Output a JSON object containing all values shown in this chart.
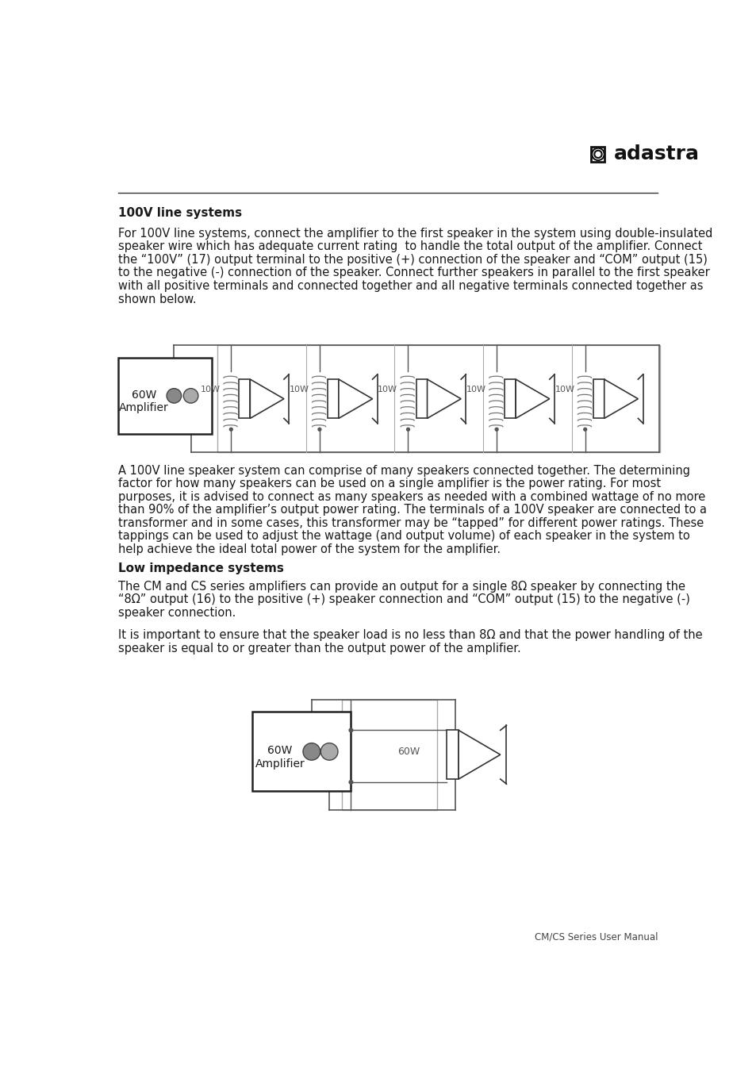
{
  "title1": "100V line systems",
  "para1_lines": [
    "For 100V line systems, connect the amplifier to the first speaker in the system using double-insulated",
    "speaker wire which has adequate current rating  to handle the total output of the amplifier. Connect",
    "the “100V” (17) output terminal to the positive (+) connection of the speaker and “COM” output (15)",
    "to the negative (-) connection of the speaker. Connect further speakers in parallel to the first speaker",
    "with all positive terminals and connected together and all negative terminals connected together as",
    "shown below."
  ],
  "para2_lines": [
    "A 100V line speaker system can comprise of many speakers connected together. The determining",
    "factor for how many speakers can be used on a single amplifier is the power rating. For most",
    "purposes, it is advised to connect as many speakers as needed with a combined wattage of no more",
    "than 90% of the amplifier’s output power rating. The terminals of a 100V speaker are connected to a",
    "transformer and in some cases, this transformer may be “tapped” for different power ratings. These",
    "tappings can be used to adjust the wattage (and output volume) of each speaker in the system to",
    "help achieve the ideal total power of the system for the amplifier."
  ],
  "title2": "Low impedance systems",
  "para3_lines": [
    "The CM and CS series amplifiers can provide an output for a single 8Ω speaker by connecting the",
    "“8Ω” output (16) to the positive (+) speaker connection and “COM” output (15) to the negative (-)",
    "speaker connection."
  ],
  "para4_lines": [
    "It is important to ensure that the speaker load is no less than 8Ω and that the power handling of the",
    "speaker is equal to or greater than the output power of the amplifier."
  ],
  "footer": "CM/CS Series User Manual",
  "amp_label": "60W\nAmplifier",
  "speaker_watt": "10W",
  "amp_label2": "60W\nAmplifier",
  "speaker_watt2": "60W",
  "bg_color": "#ffffff",
  "text_color": "#1a1a1a",
  "rule_color": "#333333",
  "box_color": "#222222",
  "wire_color": "#555555",
  "outer_rect_color": "#aaaaaa",
  "circle_face": "#888888",
  "circle_edge": "#444444"
}
